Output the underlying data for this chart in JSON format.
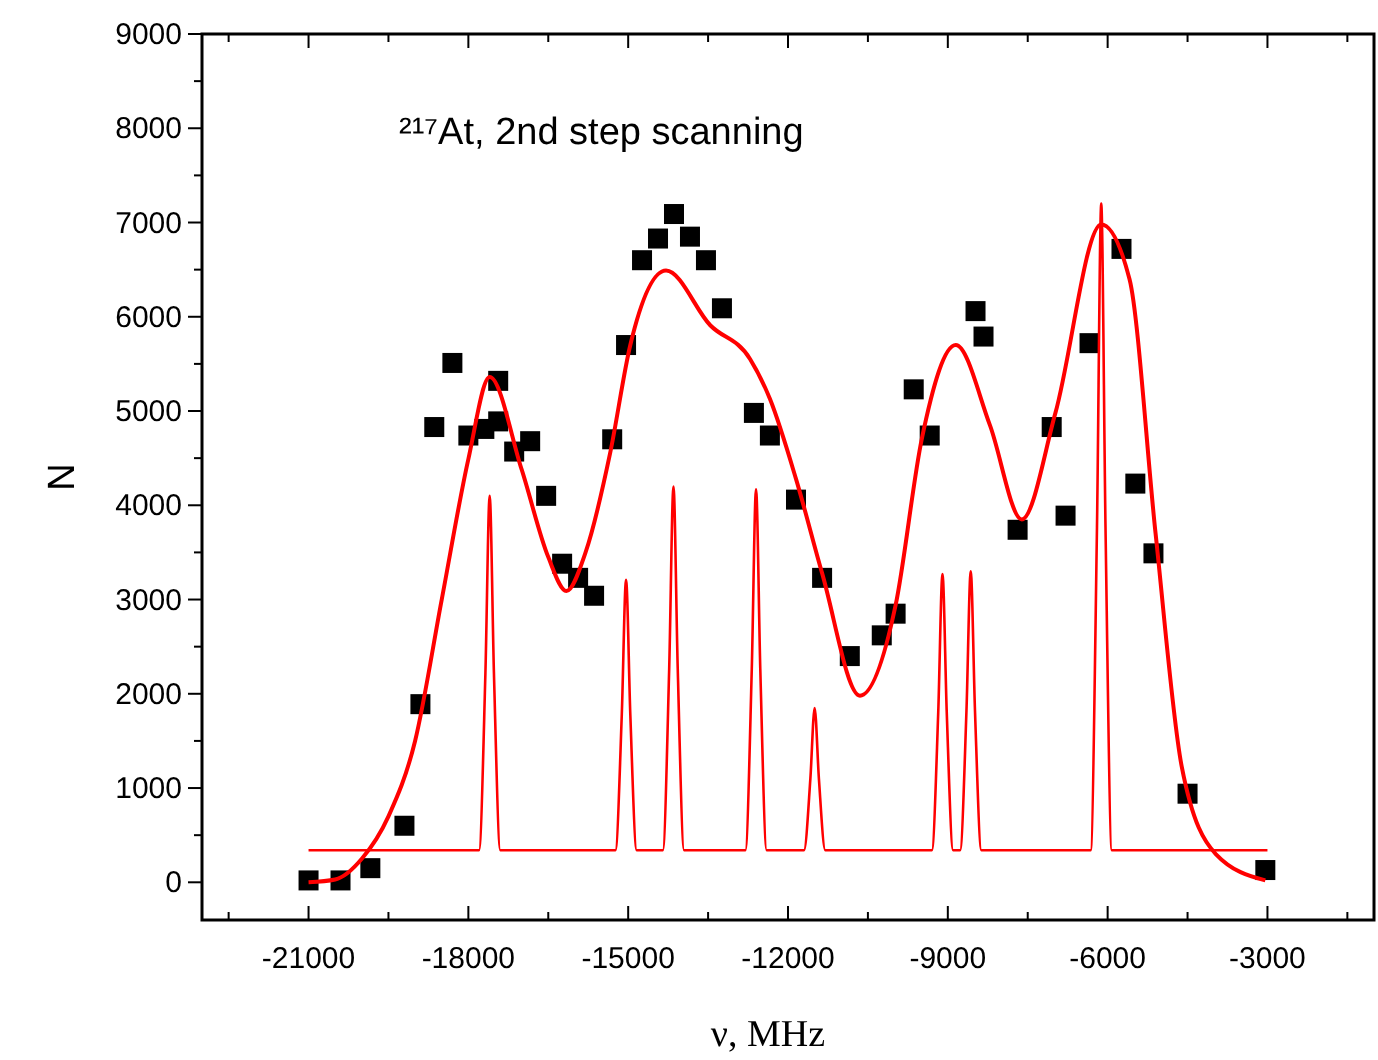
{
  "chart_data": {
    "type": "scatter",
    "title": "²¹⁷At, 2nd step scanning",
    "xlabel": "ν, MHz",
    "ylabel": "N",
    "xlim": [
      -23000,
      -1000
    ],
    "ylim": [
      -400,
      9000
    ],
    "xticks": [
      {
        "value": -22500,
        "label": null
      },
      -21000,
      {
        "value": -19500,
        "label": null
      },
      -18000,
      {
        "value": -16500,
        "label": null
      },
      -15000,
      {
        "value": -13500,
        "label": null
      },
      -12000,
      {
        "value": -10500,
        "label": null
      },
      -9000,
      {
        "value": -7500,
        "label": null
      },
      -6000,
      {
        "value": -4500,
        "label": null
      },
      -3000,
      {
        "value": -1500,
        "label": null
      }
    ],
    "yticks": [
      0,
      {
        "value": 500,
        "label": null
      },
      1000,
      {
        "value": 1500,
        "label": null
      },
      2000,
      {
        "value": 2500,
        "label": null
      },
      3000,
      {
        "value": 3500,
        "label": null
      },
      4000,
      {
        "value": 4500,
        "label": null
      },
      5000,
      {
        "value": 5500,
        "label": null
      },
      6000,
      {
        "value": 6500,
        "label": null
      },
      7000,
      {
        "value": 7500,
        "label": null
      },
      8000,
      {
        "value": 8500,
        "label": null
      },
      9000
    ],
    "grid": false,
    "series": [
      {
        "marker": "square",
        "color": "#000000",
        "x": [
          -21000,
          -20400,
          -19840,
          -19200,
          -18900,
          -18640,
          -18300,
          -18000,
          -17700,
          -17440,
          -17440,
          -17140,
          -16840,
          -16540,
          -16240,
          -15940,
          -15640,
          -15300,
          -15040,
          -14740,
          -14440,
          -14140,
          -13840,
          -13540,
          -13240,
          -12640,
          -12340,
          -11850,
          -11360,
          -10840,
          -10240,
          -9980,
          -9640,
          -9340,
          -8480,
          -8330,
          -7690,
          -7050,
          -6790,
          -6340,
          -5740,
          -5480,
          -5140,
          -4500,
          -3040
        ],
        "values": [
          20,
          20,
          150,
          600,
          1890,
          4830,
          5510,
          4740,
          4810,
          4890,
          5320,
          4570,
          4680,
          4100,
          3380,
          3230,
          3040,
          4700,
          5700,
          6600,
          6830,
          7090,
          6850,
          6600,
          6090,
          4980,
          4740,
          4060,
          3230,
          2400,
          2620,
          2850,
          5230,
          4740,
          6060,
          5790,
          3740,
          4830,
          3890,
          5720,
          6720,
          4230,
          3490,
          940,
          130
        ]
      },
      {
        "type": "line",
        "line_style": "solid",
        "color": "#ff0000",
        "x": [
          -21000,
          -20500,
          -20000,
          -19500,
          -19000,
          -18500,
          -18000,
          -17600,
          -17000,
          -16500,
          -16160,
          -15800,
          -15340,
          -14960,
          -14290,
          -13460,
          -12710,
          -12340,
          -11850,
          -11360,
          -10650,
          -9980,
          -9490,
          -8850,
          -8210,
          -7610,
          -6980,
          -6120,
          -5590,
          -5100,
          -4610,
          -3970,
          -3040
        ],
        "values": [
          0,
          30,
          250,
          700,
          1500,
          3000,
          4490,
          5360,
          4380,
          3450,
          3090,
          3500,
          4550,
          5700,
          6490,
          5910,
          5550,
          5130,
          4280,
          3280,
          1980,
          2940,
          4700,
          5700,
          4850,
          3850,
          4980,
          6980,
          6400,
          3700,
          1230,
          300,
          20
        ]
      },
      {
        "type": "line",
        "line_style": "solid",
        "color": "#ff0000",
        "x": [
          -21000,
          -17800,
          -17680,
          -17600,
          -17520,
          -17400,
          -15240,
          -15120,
          -15040,
          -14960,
          -14840,
          -14350,
          -14230,
          -14150,
          -14070,
          -13950,
          -12800,
          -12680,
          -12600,
          -12520,
          -12400,
          -11700,
          -11580,
          -11500,
          -11420,
          -11300,
          -9300,
          -9180,
          -9100,
          -9020,
          -8900,
          -8770,
          -8650,
          -8570,
          -8490,
          -8370,
          -6320,
          -6200,
          -6120,
          -6040,
          -5920,
          -3000
        ],
        "values": [
          340,
          340,
          2220,
          4100,
          2220,
          340,
          340,
          1780,
          3210,
          1780,
          340,
          340,
          2270,
          4200,
          2270,
          340,
          340,
          2260,
          4170,
          2260,
          340,
          340,
          1100,
          1850,
          1100,
          340,
          340,
          1800,
          3270,
          1800,
          340,
          340,
          1820,
          3300,
          1820,
          340,
          340,
          3770,
          7200,
          3770,
          340,
          340
        ]
      }
    ]
  }
}
